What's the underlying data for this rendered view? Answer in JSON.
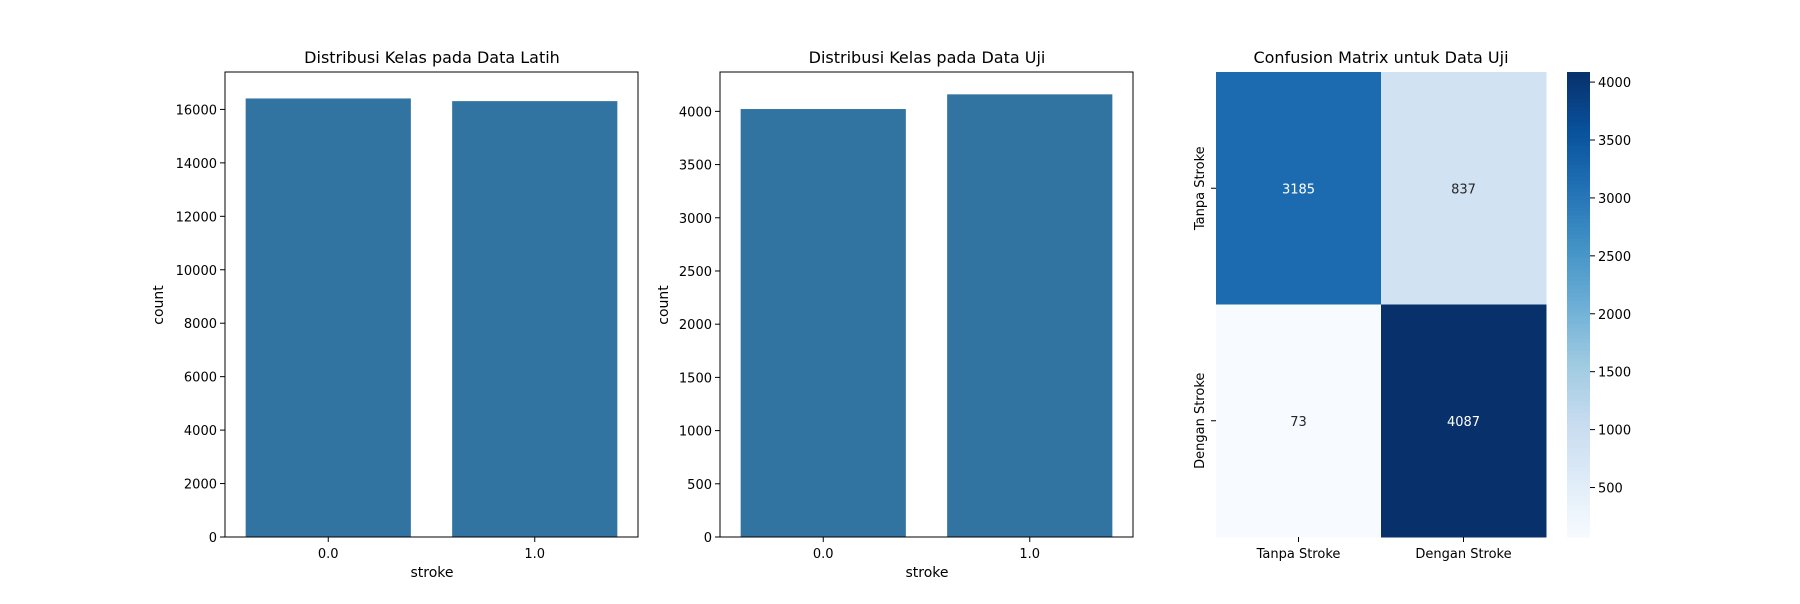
{
  "chart_data": [
    {
      "type": "bar",
      "title": "Distribusi Kelas pada Data Latih",
      "xlabel": "stroke",
      "ylabel": "count",
      "categories": [
        "0.0",
        "1.0"
      ],
      "values": [
        16410,
        16310
      ],
      "ylim": [
        0,
        17400
      ],
      "yticks": [
        0,
        2000,
        4000,
        6000,
        8000,
        10000,
        12000,
        14000,
        16000
      ],
      "color": "#3274a1",
      "grid": false
    },
    {
      "type": "bar",
      "title": "Distribusi Kelas pada Data Uji",
      "xlabel": "stroke",
      "ylabel": "count",
      "categories": [
        "0.0",
        "1.0"
      ],
      "values": [
        4022,
        4160
      ],
      "ylim": [
        0,
        4370
      ],
      "yticks": [
        0,
        500,
        1000,
        1500,
        2000,
        2500,
        3000,
        3500,
        4000
      ],
      "color": "#3274a1",
      "grid": false
    },
    {
      "type": "heatmap",
      "title": "Confusion Matrix untuk Data Uji",
      "x_categories": [
        "Tanpa Stroke",
        "Dengan Stroke"
      ],
      "y_categories": [
        "Tanpa Stroke",
        "Dengan Stroke"
      ],
      "values": [
        [
          3185,
          837
        ],
        [
          73,
          4087
        ]
      ],
      "colormap": "Blues",
      "colorbar_range": [
        73,
        4087
      ],
      "colorbar_ticks": [
        500,
        1000,
        1500,
        2000,
        2500,
        3000,
        3500,
        4000
      ]
    }
  ]
}
